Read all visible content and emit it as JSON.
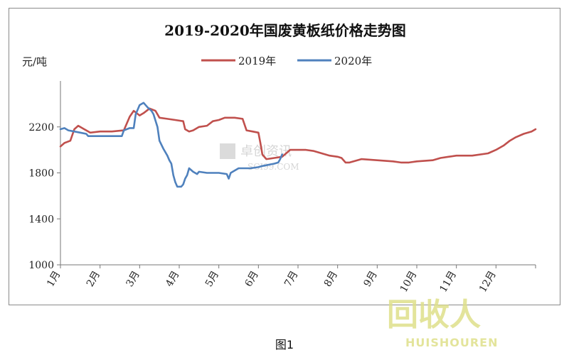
{
  "chart_data": {
    "type": "line",
    "title": "2019-2020年国废黄板纸价格走势图",
    "unit_label": "元/吨",
    "ylim": [
      1000,
      2600
    ],
    "yticks": [
      1000,
      1400,
      1800,
      2200
    ],
    "xlim": [
      1,
      13
    ],
    "xtick_labels": [
      "1月",
      "2月",
      "3月",
      "4月",
      "5月",
      "6月",
      "7月",
      "8月",
      "9月",
      "10月",
      "11月",
      "12月"
    ],
    "legend_placement": "top-center",
    "grid": false,
    "series": [
      {
        "name": "2019年",
        "color": "#c0504d",
        "points": [
          [
            1.0,
            2030
          ],
          [
            1.1,
            2060
          ],
          [
            1.25,
            2080
          ],
          [
            1.35,
            2180
          ],
          [
            1.45,
            2210
          ],
          [
            1.6,
            2180
          ],
          [
            1.75,
            2150
          ],
          [
            2.0,
            2160
          ],
          [
            2.3,
            2160
          ],
          [
            2.6,
            2170
          ],
          [
            2.75,
            2290
          ],
          [
            2.85,
            2340
          ],
          [
            3.0,
            2300
          ],
          [
            3.1,
            2320
          ],
          [
            3.25,
            2360
          ],
          [
            3.4,
            2340
          ],
          [
            3.5,
            2280
          ],
          [
            3.7,
            2270
          ],
          [
            3.9,
            2260
          ],
          [
            4.1,
            2250
          ],
          [
            4.15,
            2180
          ],
          [
            4.25,
            2160
          ],
          [
            4.35,
            2170
          ],
          [
            4.5,
            2200
          ],
          [
            4.7,
            2210
          ],
          [
            4.85,
            2250
          ],
          [
            5.0,
            2260
          ],
          [
            5.15,
            2280
          ],
          [
            5.4,
            2280
          ],
          [
            5.6,
            2270
          ],
          [
            5.7,
            2170
          ],
          [
            5.85,
            2160
          ],
          [
            6.0,
            2150
          ],
          [
            6.05,
            2060
          ],
          [
            6.1,
            1960
          ],
          [
            6.2,
            1920
          ],
          [
            6.4,
            1930
          ],
          [
            6.6,
            1940
          ],
          [
            6.8,
            2000
          ],
          [
            7.0,
            2000
          ],
          [
            7.2,
            2000
          ],
          [
            7.4,
            1990
          ],
          [
            7.6,
            1970
          ],
          [
            7.8,
            1950
          ],
          [
            8.0,
            1940
          ],
          [
            8.1,
            1930
          ],
          [
            8.2,
            1890
          ],
          [
            8.3,
            1890
          ],
          [
            8.6,
            1920
          ],
          [
            9.0,
            1910
          ],
          [
            9.4,
            1900
          ],
          [
            9.6,
            1890
          ],
          [
            9.8,
            1890
          ],
          [
            10.0,
            1900
          ],
          [
            10.4,
            1910
          ],
          [
            10.6,
            1930
          ],
          [
            10.8,
            1940
          ],
          [
            11.0,
            1950
          ],
          [
            11.4,
            1950
          ],
          [
            11.8,
            1970
          ],
          [
            12.0,
            2000
          ],
          [
            12.2,
            2040
          ],
          [
            12.35,
            2080
          ],
          [
            12.5,
            2110
          ],
          [
            12.7,
            2140
          ],
          [
            12.9,
            2160
          ],
          [
            13.0,
            2180
          ]
        ]
      },
      {
        "name": "2020年",
        "color": "#4f81bd",
        "points": [
          [
            1.0,
            2180
          ],
          [
            1.1,
            2190
          ],
          [
            1.2,
            2170
          ],
          [
            1.35,
            2160
          ],
          [
            1.5,
            2150
          ],
          [
            1.65,
            2140
          ],
          [
            1.7,
            2120
          ],
          [
            2.0,
            2120
          ],
          [
            2.4,
            2120
          ],
          [
            2.55,
            2120
          ],
          [
            2.6,
            2170
          ],
          [
            2.75,
            2190
          ],
          [
            2.85,
            2190
          ],
          [
            2.9,
            2310
          ],
          [
            3.0,
            2390
          ],
          [
            3.1,
            2410
          ],
          [
            3.2,
            2370
          ],
          [
            3.3,
            2340
          ],
          [
            3.35,
            2310
          ],
          [
            3.45,
            2200
          ],
          [
            3.5,
            2080
          ],
          [
            3.6,
            2010
          ],
          [
            3.7,
            1950
          ],
          [
            3.75,
            1910
          ],
          [
            3.8,
            1880
          ],
          [
            3.85,
            1780
          ],
          [
            3.9,
            1720
          ],
          [
            3.95,
            1680
          ],
          [
            4.05,
            1680
          ],
          [
            4.1,
            1700
          ],
          [
            4.15,
            1750
          ],
          [
            4.2,
            1780
          ],
          [
            4.25,
            1840
          ],
          [
            4.35,
            1810
          ],
          [
            4.45,
            1790
          ],
          [
            4.5,
            1810
          ],
          [
            4.7,
            1800
          ],
          [
            5.0,
            1800
          ],
          [
            5.2,
            1790
          ],
          [
            5.25,
            1750
          ],
          [
            5.3,
            1800
          ],
          [
            5.4,
            1820
          ],
          [
            5.5,
            1840
          ],
          [
            5.8,
            1840
          ],
          [
            6.0,
            1850
          ],
          [
            6.1,
            1860
          ],
          [
            6.4,
            1880
          ],
          [
            6.5,
            1890
          ],
          [
            6.55,
            1920
          ],
          [
            6.6,
            1960
          ]
        ]
      }
    ]
  },
  "footer": {
    "caption": "图1"
  },
  "watermarks": {
    "center": "卓创资讯",
    "center_sub": "SCI99.COM",
    "logo_cn": "回收人",
    "logo_en": "HUISHOUREN"
  }
}
